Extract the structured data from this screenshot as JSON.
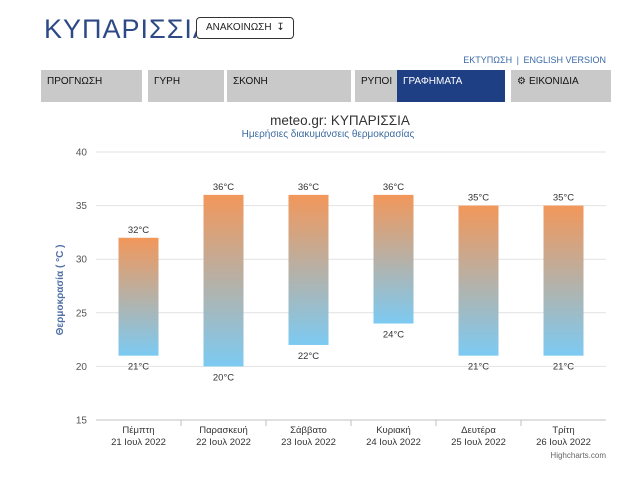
{
  "header": {
    "title": "ΚΥΠΑΡΙΣΣΙΑ",
    "announce_label": "ΑΝΑΚΟΙΝΩΣΗ",
    "announce_icon": "arrow-down-icon"
  },
  "top_links": {
    "print": "ΕΚΤΥΠΩΣΗ",
    "separator": "|",
    "english": "ENGLISH VERSION"
  },
  "nav": {
    "tabs": [
      {
        "label": "ΠΡΟΓΝΩΣΗ",
        "active": false
      },
      {
        "label": "ΓΥΡΗ",
        "active": false
      },
      {
        "label": "ΣΚΟΝΗ",
        "active": false
      },
      {
        "label": "ΡΥΠΟΙ",
        "active": false
      },
      {
        "label": "ΓΡΑΦΗΜΑΤΑ",
        "active": true
      },
      {
        "label": "ΕΙΚΟΝΙΔΙΑ",
        "active": false,
        "icon": "gear-icon"
      }
    ],
    "active_color": "#1f3f85",
    "tab_color": "#c9c9c9"
  },
  "chart_data": {
    "type": "bar",
    "subtype": "columnrange",
    "title": "meteo.gr: ΚΥΠΑΡΙΣΣΙΑ",
    "subtitle": "Ημερήσιες διακυμάνσεις θερμοκρασίας",
    "ylabel": "Θερμοκρασία ( °C )",
    "xlabel": "",
    "ylim": [
      15,
      40
    ],
    "yticks": [
      15,
      20,
      25,
      30,
      35,
      40
    ],
    "grid": true,
    "categories": [
      {
        "day": "Πέμπτη",
        "date": "21 Ιουλ 2022"
      },
      {
        "day": "Παρασκευή",
        "date": "22 Ιουλ 2022"
      },
      {
        "day": "Σάββατο",
        "date": "23 Ιουλ 2022"
      },
      {
        "day": "Κυριακή",
        "date": "24 Ιουλ 2022"
      },
      {
        "day": "Δευτέρα",
        "date": "25 Ιουλ 2022"
      },
      {
        "day": "Τρίτη",
        "date": "26 Ιουλ 2022"
      }
    ],
    "series": [
      {
        "values_low": [
          21,
          20,
          22,
          24,
          21,
          21
        ],
        "values_high": [
          32,
          36,
          36,
          36,
          35,
          35
        ]
      }
    ],
    "unit_suffix": "°C",
    "colors": {
      "high": "#f2975a",
      "low": "#7ccaf2",
      "title": "#333333",
      "subtitle": "#3d6aa0",
      "axis_label": "#4f6fa5"
    },
    "credits": "Highcharts.com"
  }
}
